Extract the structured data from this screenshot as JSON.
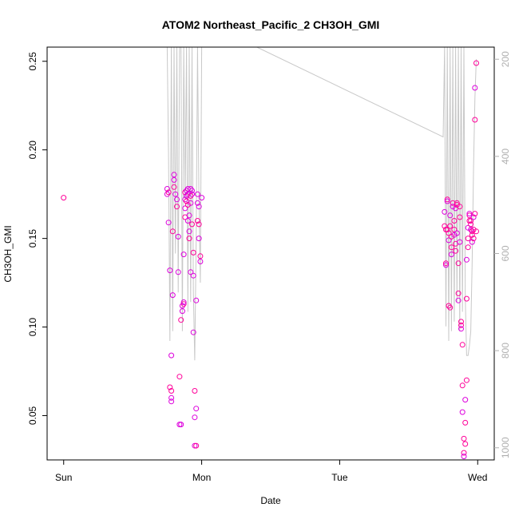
{
  "chart_data": {
    "type": "scatter",
    "title": "ATOM2 Northeast_Pacific_2 CH3OH_GMI",
    "xlabel": "Date",
    "ylabel": "CH3OH_GMI",
    "x_ticks": [
      {
        "label": "Sun",
        "value": 0
      },
      {
        "label": "Mon",
        "value": 1
      },
      {
        "label": "Tue",
        "value": 2
      },
      {
        "label": "Wed",
        "value": 3
      }
    ],
    "xlim": [
      -0.12,
      3.12
    ],
    "ylim": [
      0.025,
      0.258
    ],
    "y_ticks": [
      0.05,
      0.1,
      0.15,
      0.2,
      0.25
    ],
    "y_tick_labels": [
      "0.05",
      "0.10",
      "0.15",
      "0.20",
      "0.25"
    ],
    "y2_ticks": [
      200,
      400,
      600,
      800,
      1000
    ],
    "y2_tick_labels": [
      "200",
      "400",
      "600",
      "800",
      "1000"
    ],
    "y2lim": [
      1025,
      175
    ],
    "grid": false,
    "colors": {
      "points_left": "#dd00dd",
      "points_right": "#ff0099",
      "pressure_line": "#c8c8c8",
      "axis": "#000000",
      "right_axis": "#b0b0b0"
    },
    "series": [
      {
        "marker": "open-circle",
        "x": [
          0.0,
          0.75,
          0.75,
          0.76,
          0.76,
          0.77,
          0.77,
          0.78,
          0.78,
          0.78,
          0.78,
          0.79,
          0.79,
          0.8,
          0.8,
          0.8,
          0.81,
          0.82,
          0.82,
          0.83,
          0.83,
          0.84,
          0.84,
          0.85,
          0.85,
          0.86,
          0.86,
          0.87,
          0.87,
          0.87,
          0.88,
          0.88,
          0.88,
          0.88,
          0.89,
          0.89,
          0.89,
          0.9,
          0.9,
          0.9,
          0.9,
          0.91,
          0.91,
          0.91,
          0.92,
          0.92,
          0.92,
          0.92,
          0.93,
          0.93,
          0.93,
          0.94,
          0.94,
          0.94,
          0.95,
          0.95,
          0.95,
          0.96,
          0.96,
          0.96,
          0.97,
          0.97,
          0.97,
          0.98,
          0.98,
          0.98,
          0.99,
          0.99,
          1.0
        ],
        "y": [
          0.173,
          0.178,
          0.175,
          0.176,
          0.159,
          0.132,
          0.066,
          0.058,
          0.06,
          0.064,
          0.084,
          0.118,
          0.154,
          0.183,
          0.186,
          0.179,
          0.175,
          0.172,
          0.168,
          0.151,
          0.131,
          0.072,
          0.045,
          0.045,
          0.104,
          0.109,
          0.112,
          0.113,
          0.114,
          0.141,
          0.162,
          0.167,
          0.172,
          0.176,
          0.177,
          0.174,
          0.171,
          0.178,
          0.175,
          0.169,
          0.16,
          0.154,
          0.15,
          0.163,
          0.178,
          0.174,
          0.17,
          0.131,
          0.158,
          0.177,
          0.175,
          0.142,
          0.129,
          0.097,
          0.064,
          0.049,
          0.033,
          0.033,
          0.054,
          0.115,
          0.16,
          0.17,
          0.175,
          0.158,
          0.168,
          0.15,
          0.14,
          0.137,
          0.173
        ]
      },
      {
        "marker": "open-circle",
        "x": [
          2.76,
          2.76,
          2.77,
          2.77,
          2.77,
          2.78,
          2.78,
          2.78,
          2.79,
          2.79,
          2.79,
          2.8,
          2.8,
          2.8,
          2.81,
          2.81,
          2.81,
          2.82,
          2.82,
          2.83,
          2.83,
          2.83,
          2.84,
          2.84,
          2.84,
          2.85,
          2.85,
          2.85,
          2.86,
          2.86,
          2.86,
          2.87,
          2.87,
          2.87,
          2.88,
          2.88,
          2.88,
          2.89,
          2.89,
          2.89,
          2.9,
          2.9,
          2.9,
          2.91,
          2.91,
          2.91,
          2.92,
          2.92,
          2.92,
          2.93,
          2.93,
          2.93,
          2.94,
          2.94,
          2.94,
          2.95,
          2.95,
          2.95,
          2.96,
          2.96,
          2.96,
          2.97,
          2.97,
          2.97,
          2.98,
          2.98,
          2.98,
          2.99,
          2.99
        ],
        "y": [
          0.165,
          0.157,
          0.155,
          0.135,
          0.136,
          0.172,
          0.171,
          0.155,
          0.153,
          0.149,
          0.112,
          0.111,
          0.163,
          0.157,
          0.151,
          0.141,
          0.145,
          0.17,
          0.168,
          0.16,
          0.155,
          0.152,
          0.147,
          0.143,
          0.167,
          0.17,
          0.169,
          0.153,
          0.136,
          0.119,
          0.115,
          0.168,
          0.162,
          0.148,
          0.103,
          0.101,
          0.099,
          0.09,
          0.067,
          0.052,
          0.037,
          0.029,
          0.027,
          0.034,
          0.046,
          0.059,
          0.07,
          0.116,
          0.138,
          0.145,
          0.15,
          0.156,
          0.16,
          0.163,
          0.164,
          0.16,
          0.158,
          0.155,
          0.154,
          0.152,
          0.148,
          0.15,
          0.155,
          0.162,
          0.164,
          0.217,
          0.235,
          0.249,
          0.154
        ]
      }
    ],
    "pressure_line": {
      "x": [
        0.74,
        0.75,
        0.76,
        0.77,
        0.78,
        0.79,
        0.8,
        0.81,
        0.82,
        0.83,
        0.84,
        0.85,
        0.86,
        0.87,
        0.88,
        0.89,
        0.9,
        0.91,
        0.92,
        0.93,
        0.94,
        0.95,
        0.96,
        0.97,
        0.98,
        0.99,
        1.0,
        1.4,
        2.75,
        2.76,
        2.77,
        2.78,
        2.79,
        2.8,
        2.81,
        2.82,
        2.83,
        2.84,
        2.85,
        2.86,
        2.87,
        2.88,
        2.89,
        2.9,
        2.91,
        2.92,
        2.93,
        2.94,
        2.95,
        2.96,
        2.97,
        2.98,
        2.99
      ],
      "y": [
        175,
        175,
        400,
        780,
        175,
        760,
        175,
        600,
        175,
        680,
        175,
        175,
        760,
        175,
        490,
        175,
        720,
        175,
        700,
        175,
        680,
        820,
        570,
        175,
        480,
        660,
        175,
        175,
        360,
        175,
        750,
        175,
        780,
        175,
        760,
        175,
        740,
        175,
        700,
        175,
        760,
        175,
        720,
        175,
        690,
        810,
        810,
        790,
        760,
        620,
        420,
        280,
        200
      ]
    }
  }
}
